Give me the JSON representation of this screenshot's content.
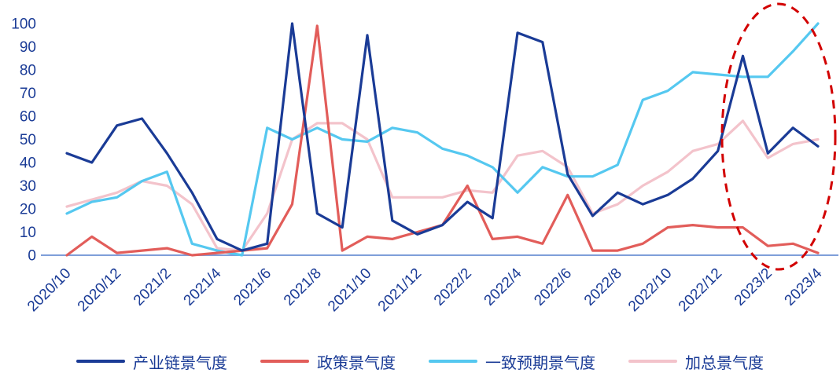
{
  "chart_data": {
    "type": "line",
    "title": "",
    "xlabel": "",
    "ylabel": "",
    "ylim": [
      0,
      100
    ],
    "yticks": [
      0,
      10,
      20,
      30,
      40,
      50,
      60,
      70,
      80,
      90,
      100
    ],
    "grid": false,
    "legend_position": "bottom",
    "axis_color": "#1a3b96",
    "baseline_color": "#7f9fd9",
    "x": [
      "2020/10",
      "2020/11",
      "2020/12",
      "2021/1",
      "2021/2",
      "2021/3",
      "2021/4",
      "2021/5",
      "2021/6",
      "2021/7",
      "2021/8",
      "2021/9",
      "2021/10",
      "2021/11",
      "2021/12",
      "2022/1",
      "2022/2",
      "2022/3",
      "2022/4",
      "2022/5",
      "2022/6",
      "2022/7",
      "2022/8",
      "2022/9",
      "2022/10",
      "2022/11",
      "2022/12",
      "2023/1",
      "2023/2",
      "2023/3",
      "2023/4"
    ],
    "x_tick_labels": [
      "2020/10",
      "2020/12",
      "2021/2",
      "2021/4",
      "2021/6",
      "2021/8",
      "2021/10",
      "2021/12",
      "2022/2",
      "2022/4",
      "2022/6",
      "2022/8",
      "2022/10",
      "2022/12",
      "2023/2",
      "2023/4"
    ],
    "series": [
      {
        "name": "产业链景气度",
        "color": "#1a3b96",
        "values": [
          44,
          40,
          56,
          59,
          44,
          27,
          7,
          2,
          5,
          100,
          18,
          12,
          95,
          15,
          9,
          13,
          23,
          16,
          96,
          92,
          35,
          17,
          27,
          22,
          26,
          33,
          45,
          86,
          44,
          55,
          47
        ]
      },
      {
        "name": "政策景气度",
        "color": "#e25d5a",
        "values": [
          0,
          8,
          1,
          2,
          3,
          0,
          1,
          2,
          3,
          22,
          99,
          2,
          8,
          7,
          10,
          13,
          30,
          7,
          8,
          5,
          26,
          2,
          2,
          5,
          12,
          13,
          12,
          12,
          4,
          5,
          1
        ]
      },
      {
        "name": "一致预期景气度",
        "color": "#55c8f0",
        "values": [
          18,
          23,
          25,
          32,
          36,
          5,
          2,
          0,
          55,
          50,
          55,
          50,
          49,
          55,
          53,
          46,
          43,
          38,
          27,
          38,
          34,
          34,
          39,
          67,
          71,
          79,
          78,
          77,
          77,
          88,
          100
        ]
      },
      {
        "name": "加总景气度",
        "color": "#f3c3cb",
        "values": [
          21,
          24,
          27,
          32,
          30,
          22,
          3,
          2,
          18,
          50,
          57,
          57,
          50,
          25,
          25,
          25,
          28,
          27,
          43,
          45,
          38,
          18,
          22,
          30,
          36,
          45,
          48,
          58,
          42,
          48,
          50
        ]
      }
    ],
    "annotation": {
      "shape": "dashed-ellipse",
      "color": "#d20000",
      "highlights": "2023/1-2023/4"
    }
  },
  "legend": {
    "items": [
      "产业链景气度",
      "政策景气度",
      "一致预期景气度",
      "加总景气度"
    ]
  }
}
